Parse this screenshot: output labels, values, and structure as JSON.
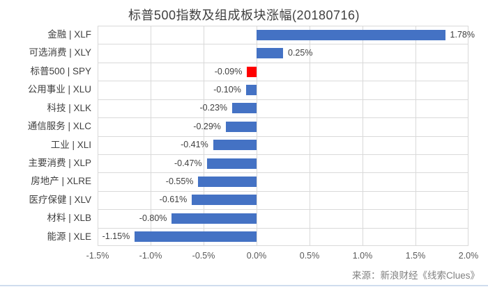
{
  "title": "标普500指数及组成板块涨幅(20180716)",
  "source": "来源：新浪财经《线索Clues》",
  "colors": {
    "bar_default": "#4472C4",
    "bar_highlight": "#FF0000",
    "gridline": "#D9D9D9",
    "title_text": "#404040",
    "label_text": "#404040",
    "tick_text": "#595959",
    "source_text": "#808080"
  },
  "chart_data": {
    "type": "bar",
    "orientation": "horizontal",
    "title": "标普500指数及组成板块涨幅(20180716)",
    "categories": [
      "金融 | XLF",
      "可选消费 | XLY",
      "标普500 | SPY",
      "公用事业 | XLU",
      "科技 | XLK",
      "通信服务 | XLC",
      "工业 | XLI",
      "主要消费 | XLP",
      "房地产 | XLRE",
      "医疗保健 | XLV",
      "材料 | XLB",
      "能源 | XLE"
    ],
    "values": [
      1.78,
      0.25,
      -0.09,
      -0.1,
      -0.23,
      -0.29,
      -0.41,
      -0.47,
      -0.55,
      -0.61,
      -0.8,
      -1.15
    ],
    "value_labels": [
      "1.78%",
      "0.25%",
      "-0.09%",
      "-0.10%",
      "-0.23%",
      "-0.29%",
      "-0.41%",
      "-0.47%",
      "-0.55%",
      "-0.61%",
      "-0.80%",
      "-1.15%"
    ],
    "bar_colors": [
      "#4472C4",
      "#4472C4",
      "#FF0000",
      "#4472C4",
      "#4472C4",
      "#4472C4",
      "#4472C4",
      "#4472C4",
      "#4472C4",
      "#4472C4",
      "#4472C4",
      "#4472C4"
    ],
    "xlabel": "",
    "ylabel": "",
    "xlim": [
      -1.5,
      2.0
    ],
    "xtick_labels": [
      "-1.5%",
      "-1.0%",
      "-0.5%",
      "0.0%",
      "0.5%",
      "1.0%",
      "1.5%",
      "2.0%"
    ],
    "grid": true,
    "legend": "none"
  }
}
